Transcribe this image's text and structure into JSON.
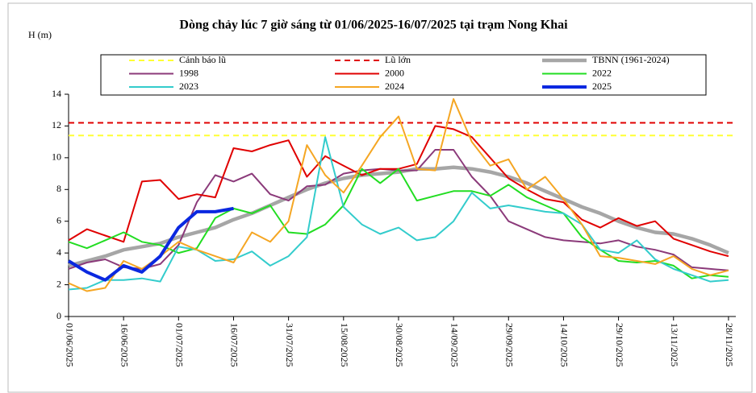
{
  "chart_data": {
    "type": "line",
    "title": "Dòng chảy lúc 7 giờ sáng từ 01/06/2025-16/07/2025 tại trạm Nong Khai",
    "y_label": "H (m)",
    "x": [
      "01/06/2025",
      "06/06/2025",
      "11/06/2025",
      "16/06/2025",
      "21/06/2025",
      "26/06/2025",
      "01/07/2025",
      "06/07/2025",
      "11/07/2025",
      "16/07/2025",
      "21/07/2025",
      "26/07/2025",
      "31/07/2025",
      "05/08/2025",
      "10/08/2025",
      "15/08/2025",
      "20/08/2025",
      "25/08/2025",
      "30/08/2025",
      "04/09/2025",
      "09/09/2025",
      "14/09/2025",
      "19/09/2025",
      "24/09/2025",
      "29/09/2025",
      "04/10/2025",
      "09/10/2025",
      "14/10/2025",
      "19/10/2025",
      "24/10/2025",
      "29/10/2025",
      "03/11/2025",
      "08/11/2025",
      "13/11/2025",
      "18/11/2025",
      "23/11/2025",
      "28/11/2025"
    ],
    "xlim": [
      "01/06/2025",
      "30/11/2025"
    ],
    "xticks": [
      "01/06/2025",
      "16/06/2025",
      "01/07/2025",
      "16/07/2025",
      "31/07/2025",
      "15/08/2025",
      "30/08/2025",
      "14/09/2025",
      "29/09/2025",
      "14/10/2025",
      "29/10/2025",
      "13/11/2025",
      "28/11/2025"
    ],
    "ylim": [
      0,
      14
    ],
    "yticks": [
      0,
      2,
      4,
      6,
      8,
      10,
      12,
      14
    ],
    "reference_lines": [
      {
        "name": "Cảnh báo lũ",
        "value": 11.4,
        "color": "#ffff33"
      },
      {
        "name": "Lũ lớn",
        "value": 12.2,
        "color": "#e00000"
      }
    ],
    "series": [
      {
        "name": "TBNN (1961-2024)",
        "color": "#a6a6a6",
        "line_width": 4.5,
        "values": [
          3.2,
          3.5,
          3.8,
          4.2,
          4.4,
          4.6,
          5.0,
          5.3,
          5.6,
          6.1,
          6.5,
          7.0,
          7.5,
          8.0,
          8.4,
          8.7,
          8.9,
          9.0,
          9.1,
          9.3,
          9.3,
          9.4,
          9.3,
          9.1,
          8.8,
          8.4,
          7.9,
          7.4,
          6.9,
          6.5,
          6.0,
          5.6,
          5.3,
          5.2,
          4.9,
          4.5,
          4.0
        ]
      },
      {
        "name": "1998",
        "color": "#8b3a7a",
        "line_width": 2,
        "values": [
          3.0,
          3.4,
          3.6,
          3.1,
          3.0,
          3.3,
          4.5,
          7.2,
          8.9,
          8.5,
          9.0,
          7.7,
          7.3,
          8.2,
          8.3,
          9.0,
          9.2,
          9.3,
          9.2,
          9.2,
          10.5,
          10.5,
          8.8,
          7.6,
          6.0,
          5.5,
          5.0,
          4.8,
          4.7,
          4.6,
          4.8,
          4.4,
          4.2,
          3.9,
          3.1,
          3.0,
          2.9
        ]
      },
      {
        "name": "2000",
        "color": "#e00000",
        "line_width": 2,
        "values": [
          4.8,
          5.5,
          5.1,
          4.7,
          8.5,
          8.6,
          7.4,
          7.7,
          7.5,
          10.6,
          10.4,
          10.8,
          11.1,
          8.8,
          10.1,
          9.5,
          8.9,
          9.3,
          9.3,
          9.6,
          12.0,
          11.8,
          11.3,
          10.0,
          8.7,
          8.0,
          7.4,
          7.2,
          6.1,
          5.6,
          6.2,
          5.7,
          6.0,
          4.9,
          4.5,
          4.1,
          3.8
        ]
      },
      {
        "name": "2022",
        "color": "#22dd22",
        "line_width": 2,
        "values": [
          4.7,
          4.3,
          4.8,
          5.3,
          4.7,
          4.5,
          4.0,
          4.3,
          6.2,
          6.8,
          6.5,
          7.0,
          5.3,
          5.2,
          5.8,
          7.0,
          9.3,
          8.4,
          9.3,
          7.3,
          7.6,
          7.9,
          7.9,
          7.6,
          8.3,
          7.5,
          7.0,
          6.5,
          5.0,
          4.2,
          3.5,
          3.4,
          3.5,
          3.2,
          2.4,
          2.6,
          2.5
        ]
      },
      {
        "name": "2023",
        "color": "#33cccc",
        "line_width": 2,
        "values": [
          1.7,
          1.8,
          2.3,
          2.3,
          2.4,
          2.2,
          4.4,
          4.2,
          3.5,
          3.6,
          4.1,
          3.2,
          3.8,
          5.0,
          11.3,
          6.9,
          5.8,
          5.2,
          5.6,
          4.8,
          5.0,
          6.0,
          7.8,
          6.8,
          7.0,
          6.8,
          6.6,
          6.5,
          5.8,
          4.2,
          4.0,
          4.8,
          3.6,
          3.0,
          2.6,
          2.2,
          2.3
        ]
      },
      {
        "name": "2024",
        "color": "#f5a623",
        "line_width": 2,
        "values": [
          2.1,
          1.6,
          1.8,
          3.5,
          3.0,
          3.8,
          4.7,
          4.2,
          3.8,
          3.4,
          5.3,
          4.7,
          6.0,
          10.8,
          8.9,
          7.8,
          9.5,
          11.3,
          12.6,
          9.3,
          9.2,
          13.7,
          11.0,
          9.5,
          9.9,
          8.0,
          8.8,
          7.4,
          5.8,
          3.8,
          3.7,
          3.5,
          3.3,
          3.8,
          3.0,
          2.6,
          2.9
        ]
      },
      {
        "name": "2025",
        "color": "#0a28e0",
        "line_width": 4,
        "values": [
          3.5,
          2.8,
          2.3,
          3.2,
          2.8,
          3.8,
          5.6,
          6.6,
          6.6,
          6.8,
          null,
          null,
          null,
          null,
          null,
          null,
          null,
          null,
          null,
          null,
          null,
          null,
          null,
          null,
          null,
          null,
          null,
          null,
          null,
          null,
          null,
          null,
          null,
          null,
          null,
          null,
          null
        ]
      }
    ]
  }
}
